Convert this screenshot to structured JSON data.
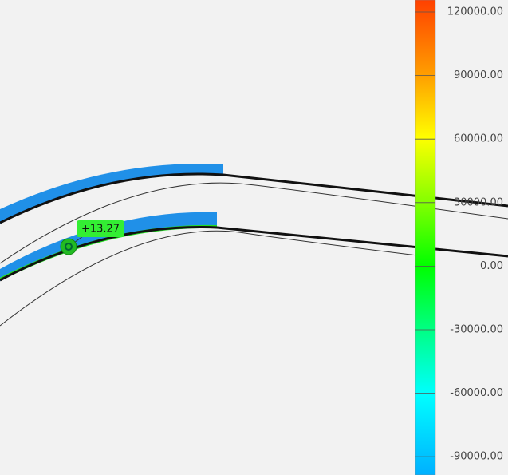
{
  "legend": {
    "labels": [
      "120000.00",
      "90000.00",
      "60000.00",
      "30000.00",
      "0.00",
      "-30000.00",
      "-60000.00",
      "-90000.00"
    ]
  },
  "probe": {
    "label": "+13.27"
  }
}
